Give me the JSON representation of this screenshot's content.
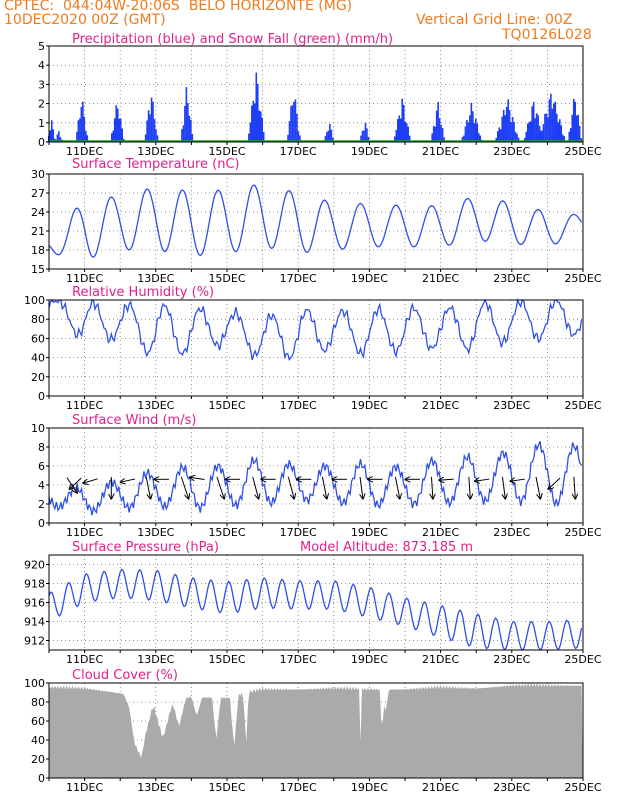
{
  "header": {
    "line1": "CPTEC:  044:04W-20:06S  BELO HORIZONTE (MG)",
    "line2": "10DEC2020 00Z (GMT)",
    "grid_note": "Vertical Grid Line: 00Z",
    "code": "TQ0126L028"
  },
  "colors": {
    "header": "#f07b1e",
    "panel_title": "#e0208c",
    "precip": "#1f3ff5",
    "snow": "#1ea01e",
    "line": "#2f4fe8",
    "wind_arrow": "#000000",
    "cloud": "#aaaaaa"
  },
  "chart_data": [
    {
      "id": "precip",
      "type": "bar",
      "title": "Precipitation (blue) and Snow Fall (green) (mm/h)",
      "ylim": [
        0,
        5
      ],
      "yticks": [
        "0",
        "1",
        "2",
        "3",
        "4",
        "5"
      ],
      "grid": true,
      "xticks": [
        "11DEC",
        "13DEC",
        "15DEC",
        "17DEC",
        "19DEC",
        "21DEC",
        "23DEC",
        "25DEC"
      ],
      "series": [
        {
          "name": "Precipitation",
          "events": [
            [
              10.05,
              0.12,
              1.2
            ],
            [
              10.25,
              0.12,
              0.6
            ],
            [
              10.9,
              0.18,
              2.5
            ],
            [
              11.9,
              0.2,
              2.3
            ],
            [
              12.85,
              0.2,
              2.8
            ],
            [
              13.85,
              0.18,
              3.1
            ],
            [
              15.8,
              0.25,
              3.8
            ],
            [
              16.85,
              0.2,
              3.0
            ],
            [
              17.85,
              0.15,
              1.1
            ],
            [
              18.85,
              0.15,
              1.2
            ],
            [
              19.9,
              0.25,
              2.4
            ],
            [
              20.9,
              0.2,
              2.2
            ],
            [
              21.85,
              0.3,
              2.1
            ],
            [
              22.85,
              0.35,
              2.4
            ],
            [
              23.6,
              0.3,
              2.3
            ],
            [
              24.1,
              0.4,
              2.8
            ],
            [
              24.75,
              0.2,
              2.7
            ]
          ]
        },
        {
          "name": "Snow Fall",
          "values": [
            0,
            0
          ]
        }
      ]
    },
    {
      "id": "temp",
      "type": "line",
      "title": "Surface Temperature (nC)",
      "ylim": [
        15,
        30
      ],
      "yticks": [
        "15",
        "18",
        "21",
        "24",
        "27",
        "30"
      ],
      "grid": true,
      "xticks": [
        "11DEC",
        "13DEC",
        "15DEC",
        "17DEC",
        "19DEC",
        "21DEC",
        "23DEC",
        "25DEC"
      ],
      "days": [
        10,
        11,
        12,
        13,
        14,
        15,
        16,
        17,
        18,
        19,
        20,
        21,
        22,
        23,
        24,
        25
      ],
      "min": [
        17.5,
        16.5,
        18.0,
        18.0,
        17.0,
        17.5,
        18.5,
        17.5,
        18.0,
        18.5,
        18.5,
        18.5,
        19.5,
        19.0,
        18.5,
        20.5
      ],
      "max": [
        20,
        26.0,
        26.5,
        28.0,
        27.3,
        27.5,
        28.5,
        27.0,
        25.5,
        25.3,
        25.0,
        25.0,
        26.5,
        25.5,
        24.0,
        23.5
      ]
    },
    {
      "id": "rh",
      "type": "line",
      "title": "Relative Humidity (%)",
      "ylim": [
        0,
        100
      ],
      "yticks": [
        "0",
        "20",
        "40",
        "60",
        "80",
        "100"
      ],
      "grid": true,
      "xticks": [
        "11DEC",
        "13DEC",
        "15DEC",
        "17DEC",
        "19DEC",
        "21DEC",
        "23DEC",
        "25DEC"
      ],
      "days": [
        10,
        11,
        12,
        13,
        14,
        15,
        16,
        17,
        18,
        19,
        20,
        21,
        22,
        23,
        24,
        25
      ],
      "min": [
        95,
        55,
        60,
        40,
        45,
        55,
        38,
        40,
        50,
        42,
        48,
        50,
        48,
        58,
        60,
        65
      ],
      "max": [
        100,
        98,
        95,
        95,
        92,
        88,
        82,
        90,
        88,
        90,
        92,
        90,
        98,
        98,
        100,
        100
      ]
    },
    {
      "id": "wind",
      "type": "line",
      "title": "Surface Wind (m/s)",
      "ylim": [
        0,
        10
      ],
      "yticks": [
        "0",
        "2",
        "4",
        "6",
        "8",
        "10"
      ],
      "grid": true,
      "xticks": [
        "11DEC",
        "13DEC",
        "15DEC",
        "17DEC",
        "19DEC",
        "21DEC",
        "23DEC",
        "25DEC"
      ],
      "days": [
        10,
        11,
        12,
        13,
        14,
        15,
        16,
        17,
        18,
        19,
        20,
        21,
        22,
        23,
        24,
        25
      ],
      "min": [
        1.8,
        1.2,
        1.5,
        1.8,
        1.5,
        1.8,
        2.0,
        2.5,
        2.2,
        1.8,
        2.0,
        2.0,
        2.3,
        2.3,
        2.2,
        1.5
      ],
      "max": [
        3.5,
        3.8,
        4.5,
        5.5,
        6.0,
        6.0,
        6.8,
        6.0,
        6.0,
        6.3,
        5.8,
        6.8,
        7.0,
        7.5,
        8.5,
        8.0
      ],
      "arrows": [
        [
          10.55,
          -0.7,
          0.7
        ],
        [
          10.85,
          0.8,
          0.5
        ],
        [
          11.3,
          1,
          0.2
        ],
        [
          11.75,
          0,
          1
        ],
        [
          12.35,
          1,
          0.15
        ],
        [
          12.75,
          -0.3,
          1
        ],
        [
          13.3,
          1,
          0
        ],
        [
          13.75,
          -0.5,
          1
        ],
        [
          14.3,
          1,
          -0.1
        ],
        [
          14.75,
          -0.5,
          1
        ],
        [
          15.3,
          1,
          0
        ],
        [
          15.75,
          -0.4,
          1
        ],
        [
          16.3,
          1,
          0
        ],
        [
          16.75,
          -0.4,
          1
        ],
        [
          17.3,
          1,
          0
        ],
        [
          17.7,
          -0.3,
          1
        ],
        [
          18.3,
          1,
          0
        ],
        [
          18.75,
          -0.2,
          1
        ],
        [
          19.3,
          1,
          0
        ],
        [
          19.75,
          -0.3,
          1
        ],
        [
          20.35,
          1,
          0
        ],
        [
          20.75,
          -0.1,
          1
        ],
        [
          21.3,
          1,
          0.05
        ],
        [
          21.8,
          -0.1,
          1
        ],
        [
          22.3,
          1,
          0.1
        ],
        [
          22.75,
          -0.2,
          1
        ],
        [
          23.3,
          1,
          0.1
        ],
        [
          23.7,
          -0.3,
          1
        ],
        [
          24.3,
          0.8,
          0.5
        ],
        [
          24.75,
          -0.1,
          1
        ]
      ]
    },
    {
      "id": "pressure",
      "type": "line",
      "title": "Surface Pressure (hPa)",
      "annotation": "Model Altitude: 873.185 m",
      "ylim": [
        911,
        921
      ],
      "yticks": [
        "912",
        "914",
        "916",
        "918",
        "920"
      ],
      "grid": true,
      "xticks": [
        "11DEC",
        "13DEC",
        "15DEC",
        "17DEC",
        "19DEC",
        "21DEC",
        "23DEC",
        "25DEC"
      ],
      "days": [
        10,
        11,
        12,
        13,
        14,
        15,
        16,
        17,
        18,
        19,
        20,
        21,
        22,
        23,
        24,
        25
      ],
      "mean": [
        915.5,
        917.5,
        918.0,
        917.8,
        917.0,
        916.5,
        917.0,
        916.8,
        916.8,
        916.0,
        915.0,
        914.0,
        913.0,
        912.5,
        912.5,
        912.7
      ],
      "amplitude": [
        1.5,
        1.5,
        1.5,
        1.6,
        1.6,
        1.7,
        1.6,
        1.5,
        1.5,
        1.6,
        1.5,
        1.7,
        1.8,
        1.5,
        1.5,
        1.5
      ]
    },
    {
      "id": "cloud",
      "type": "area",
      "title": "Cloud Cover (%)",
      "ylim": [
        0,
        100
      ],
      "yticks": [
        "0",
        "20",
        "40",
        "60",
        "80",
        "100"
      ],
      "grid": true,
      "xticks": [
        "11DEC",
        "13DEC",
        "15DEC",
        "17DEC",
        "19DEC",
        "21DEC",
        "23DEC",
        "25DEC"
      ],
      "days": [
        10,
        11,
        12,
        13,
        14,
        15,
        16,
        17,
        18,
        19,
        20,
        21,
        22,
        23,
        24,
        25
      ],
      "daily": [
        98,
        97,
        92,
        83,
        88,
        87,
        96,
        96,
        97,
        96,
        96,
        98,
        97,
        100,
        100,
        100
      ],
      "dips": [
        [
          12.6,
          0.35,
          55
        ],
        [
          12.4,
          0.3,
          25
        ],
        [
          13.2,
          0.3,
          40
        ],
        [
          13.65,
          0.2,
          30
        ],
        [
          14.15,
          0.15,
          20
        ],
        [
          14.7,
          0.12,
          45
        ],
        [
          15.2,
          0.12,
          55
        ],
        [
          15.55,
          0.05,
          55
        ],
        [
          15.5,
          0.05,
          30
        ],
        [
          18.75,
          0.04,
          55
        ],
        [
          19.35,
          0.06,
          48
        ],
        [
          19.45,
          0.1,
          25
        ]
      ]
    }
  ]
}
